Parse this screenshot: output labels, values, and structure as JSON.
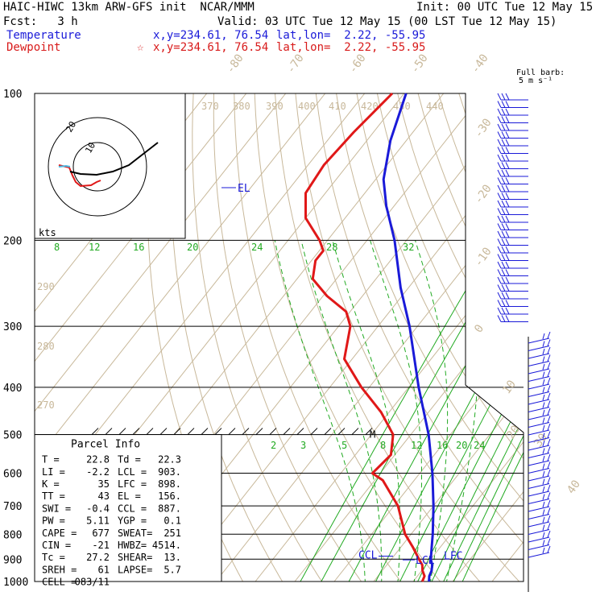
{
  "header": {
    "title": "HAIC-HIWC 13km ARW-GFS init  NCAR/MMM",
    "init": "Init: 00 UTC Tue 12 May 15",
    "fcst": "Fcst:   3 h",
    "valid": "Valid: 03 UTC Tue 12 May 15 (00 LST Tue 12 May 15)",
    "temp_label": "Temperature",
    "temp_xy": "x,y=234.61, 76.54",
    "temp_latlon": "lat,lon=  2.22, -55.95",
    "dew_label": "Dewpoint",
    "dew_marker": "☆",
    "dew_xy": "x,y=234.61, 76.54",
    "dew_latlon": "lat,lon=  2.22, -55.95"
  },
  "colors": {
    "temperature": "#1a1ad8",
    "dewpoint": "#e01818",
    "mixing_ratio": "#22aa22",
    "dry_adiabat": "#c8b89a",
    "isotherm": "#c8b89a",
    "pressure": "#000000"
  },
  "barb_legend": {
    "line1": "Full barb:",
    "line2": "5 m s⁻¹"
  },
  "chart_data": {
    "type": "skew-t",
    "y_axis": {
      "scale": "log-pressure",
      "unit": "hPa",
      "range": [
        1000,
        100
      ],
      "ticks": [
        100,
        200,
        300,
        400,
        500,
        600,
        700,
        800,
        900,
        1000
      ]
    },
    "isotherm_labels": [
      "-80",
      "-70",
      "-60",
      "-50",
      "-40",
      "-30",
      "-20",
      "-10",
      "0",
      "10",
      "20",
      "30",
      "40"
    ],
    "theta_labels": [
      "370",
      "380",
      "390",
      "400",
      "410",
      "420",
      "430",
      "440",
      "290",
      "280",
      "270"
    ],
    "mixing_ratio_labels_upper": [
      "8",
      "12",
      "16",
      "20",
      "24",
      "28",
      "32"
    ],
    "mixing_ratio_labels_lower": [
      "2",
      "3",
      "5",
      "8",
      "12",
      "16",
      "20",
      "24"
    ],
    "series": [
      {
        "name": "Temperature",
        "points": [
          [
            1000,
            24.0
          ],
          [
            975,
            23.0
          ],
          [
            950,
            22.5
          ],
          [
            925,
            21.5
          ],
          [
            900,
            20.0
          ],
          [
            850,
            17.8
          ],
          [
            800,
            15.5
          ],
          [
            700,
            10.0
          ],
          [
            600,
            3.2
          ],
          [
            500,
            -5.5
          ],
          [
            400,
            -17.5
          ],
          [
            300,
            -32.0
          ],
          [
            250,
            -42.0
          ],
          [
            200,
            -53.0
          ],
          [
            170,
            -62.0
          ],
          [
            150,
            -68.0
          ],
          [
            125,
            -74.0
          ],
          [
            100,
            -79.5
          ]
        ]
      },
      {
        "name": "Dewpoint",
        "points": [
          [
            1000,
            22.3
          ],
          [
            975,
            21.8
          ],
          [
            950,
            20.2
          ],
          [
            925,
            19.0
          ],
          [
            900,
            17.0
          ],
          [
            850,
            13.0
          ],
          [
            800,
            8.5
          ],
          [
            700,
            1.0
          ],
          [
            620,
            -8.0
          ],
          [
            600,
            -12.0
          ],
          [
            550,
            -11.0
          ],
          [
            500,
            -14.5
          ],
          [
            450,
            -22.0
          ],
          [
            400,
            -32.0
          ],
          [
            350,
            -42.0
          ],
          [
            300,
            -47.0
          ],
          [
            280,
            -51.0
          ],
          [
            260,
            -59.0
          ],
          [
            240,
            -66.0
          ],
          [
            220,
            -69.0
          ],
          [
            210,
            -69.0
          ],
          [
            200,
            -72.0
          ],
          [
            180,
            -80.0
          ],
          [
            160,
            -85.0
          ],
          [
            140,
            -86.0
          ],
          [
            120,
            -85.0
          ],
          [
            100,
            -83.0
          ]
        ]
      }
    ],
    "markers": [
      {
        "label": "EL",
        "pressure": 156
      },
      {
        "label": "LCL",
        "pressure": 903
      },
      {
        "label": "LFC",
        "pressure": 898
      },
      {
        "label": "CCL",
        "pressure": 887
      },
      {
        "label": "M",
        "pressure": 500
      }
    ],
    "hodograph": {
      "ring_labels": [
        "10",
        "20"
      ],
      "unit": "kts"
    }
  },
  "parcel_info": {
    "title": "Parcel Info",
    "rows": [
      [
        "T  =",
        "22.8",
        "Td =",
        "22.3"
      ],
      [
        "LI =",
        "-2.2",
        "LCL =",
        "903."
      ],
      [
        "K  =",
        "35",
        "LFC =",
        "898."
      ],
      [
        "TT =",
        "43",
        "EL  =",
        "156."
      ],
      [
        "SWI =",
        "-0.4",
        "CCL =",
        "887."
      ],
      [
        "PW =",
        "5.11",
        "YGP =",
        "0.1"
      ],
      [
        "CAPE =",
        "677",
        "SWEAT=",
        "251"
      ],
      [
        "CIN =",
        "-21",
        "HWBZ=",
        "4514."
      ],
      [
        "Tc =",
        "27.2",
        "SHEAR=",
        "13."
      ],
      [
        "SREH =",
        "61",
        "LAPSE=",
        "5.7"
      ],
      [
        "CELL =",
        "083/11",
        "",
        ""
      ]
    ]
  }
}
